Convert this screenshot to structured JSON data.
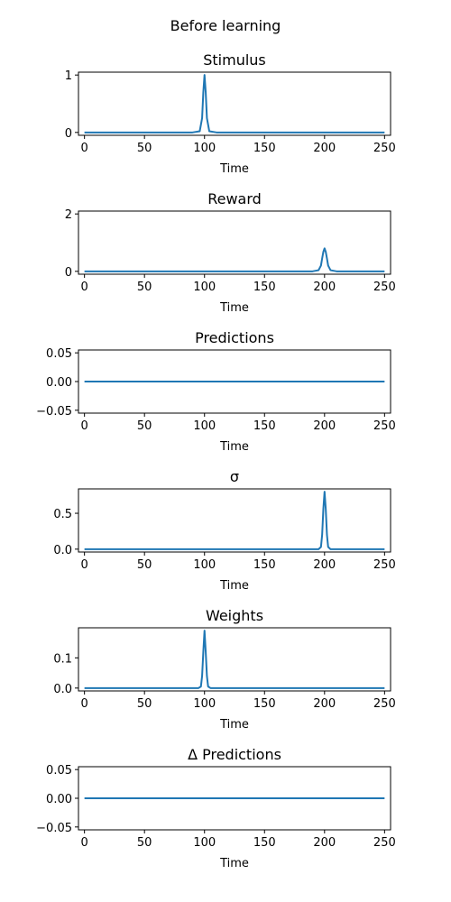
{
  "figure": {
    "title": "Before learning"
  },
  "series_color": "#1f77b4",
  "chart_data": [
    {
      "type": "line",
      "title": "Stimulus",
      "xlabel": "Time",
      "xlim": [
        -5,
        255
      ],
      "ylim": [
        -0.05,
        1.05
      ],
      "xticks": [
        0,
        50,
        100,
        150,
        200,
        250
      ],
      "yticks": [
        0,
        1
      ],
      "ytick_labels": [
        "0",
        "1"
      ],
      "x": [
        0,
        90,
        96,
        98,
        99,
        100,
        101,
        102,
        104,
        110,
        250
      ],
      "y": [
        0,
        0,
        0.02,
        0.25,
        0.7,
        1.0,
        0.7,
        0.25,
        0.02,
        0,
        0
      ]
    },
    {
      "type": "line",
      "title": "Reward",
      "xlabel": "Time",
      "xlim": [
        -5,
        255
      ],
      "ylim": [
        -0.1,
        2.1
      ],
      "xticks": [
        0,
        50,
        100,
        150,
        200,
        250
      ],
      "yticks": [
        0,
        2
      ],
      "ytick_labels": [
        "0",
        "2"
      ],
      "x": [
        0,
        190,
        195,
        197,
        198,
        199,
        200,
        201,
        202,
        203,
        205,
        210,
        250
      ],
      "y": [
        0,
        0,
        0.04,
        0.2,
        0.45,
        0.68,
        0.8,
        0.68,
        0.45,
        0.2,
        0.04,
        0,
        0
      ]
    },
    {
      "type": "line",
      "title": "Predictions",
      "xlabel": "Time",
      "xlim": [
        -5,
        255
      ],
      "ylim": [
        -0.055,
        0.055
      ],
      "xticks": [
        0,
        50,
        100,
        150,
        200,
        250
      ],
      "yticks": [
        0.05,
        0,
        -0.05
      ],
      "ytick_labels": [
        "0.05",
        "0.00",
        "−0.05"
      ],
      "x": [
        0,
        250
      ],
      "y": [
        0,
        0
      ]
    },
    {
      "type": "line",
      "title": "σ",
      "xlabel": "Time",
      "xlim": [
        -5,
        255
      ],
      "ylim": [
        -0.04,
        0.84
      ],
      "xticks": [
        0,
        50,
        100,
        150,
        200,
        250
      ],
      "yticks": [
        0,
        0.5
      ],
      "ytick_labels": [
        "0.0",
        "0.5"
      ],
      "x": [
        0,
        195,
        197,
        198,
        199,
        200,
        201,
        202,
        203,
        205,
        250
      ],
      "y": [
        0,
        0,
        0.03,
        0.2,
        0.56,
        0.8,
        0.56,
        0.2,
        0.03,
        0,
        0
      ]
    },
    {
      "type": "line",
      "title": "Weights",
      "xlabel": "Time",
      "xlim": [
        -5,
        255
      ],
      "ylim": [
        -0.0095,
        0.1995
      ],
      "xticks": [
        0,
        50,
        100,
        150,
        200,
        250
      ],
      "yticks": [
        0,
        0.1
      ],
      "ytick_labels": [
        "0.0",
        "0.1"
      ],
      "x": [
        0,
        95,
        97,
        98,
        99,
        100,
        101,
        102,
        103,
        105,
        250
      ],
      "y": [
        0,
        0,
        0.005,
        0.04,
        0.12,
        0.19,
        0.12,
        0.04,
        0.005,
        0,
        0
      ]
    },
    {
      "type": "line",
      "title": "Δ Predictions",
      "xlabel": "Time",
      "xlim": [
        -5,
        255
      ],
      "ylim": [
        -0.055,
        0.055
      ],
      "xticks": [
        0,
        50,
        100,
        150,
        200,
        250
      ],
      "yticks": [
        0.05,
        0,
        -0.05
      ],
      "ytick_labels": [
        "0.05",
        "0.00",
        "−0.05"
      ],
      "x": [
        0,
        250
      ],
      "y": [
        0,
        0
      ]
    }
  ]
}
